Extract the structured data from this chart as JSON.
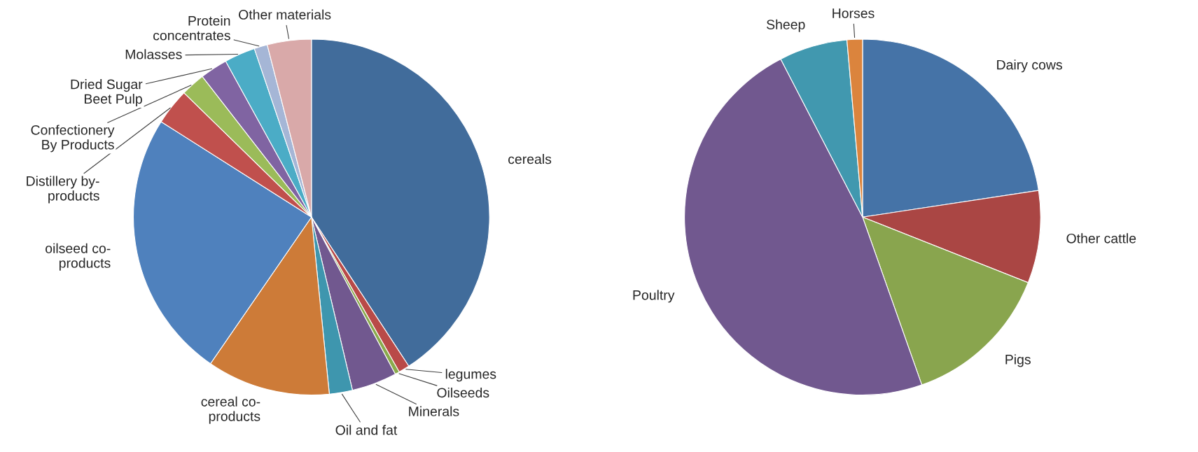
{
  "chart_data": [
    {
      "type": "pie",
      "categories": [
        "cereals",
        "legumes",
        "Oilseeds",
        "Minerals",
        "Oil and fat",
        "cereal co-\nproducts",
        "oilseed co-\nproducts",
        "Distillery by-\nproducts",
        "Confectionery\nBy Products",
        "Dried Sugar\nBeet Pulp",
        "Molasses",
        "Protein\nconcentrates",
        "Other materials"
      ],
      "values": [
        40.8,
        1.0,
        0.4,
        4.1,
        2.1,
        11.2,
        24.4,
        3.3,
        2.2,
        2.5,
        2.8,
        1.2,
        4.0
      ],
      "colors": [
        "#416c9b",
        "#b94a48",
        "#8aaa4c",
        "#71588f",
        "#3e96ae",
        "#cd7b38",
        "#4f81bd",
        "#c0504d",
        "#9bbb59",
        "#8064a2",
        "#4bacc6",
        "#a5b6d6",
        "#d9a9a9"
      ]
    },
    {
      "type": "pie",
      "categories": [
        "Dairy cows",
        "Other cattle",
        "Pigs",
        "Poultry",
        "Sheep",
        "Horses"
      ],
      "values": [
        22.6,
        8.4,
        13.6,
        47.8,
        6.2,
        1.4
      ],
      "colors": [
        "#4573a7",
        "#aa4644",
        "#89a54e",
        "#71588f",
        "#4198af",
        "#db843d"
      ]
    }
  ]
}
